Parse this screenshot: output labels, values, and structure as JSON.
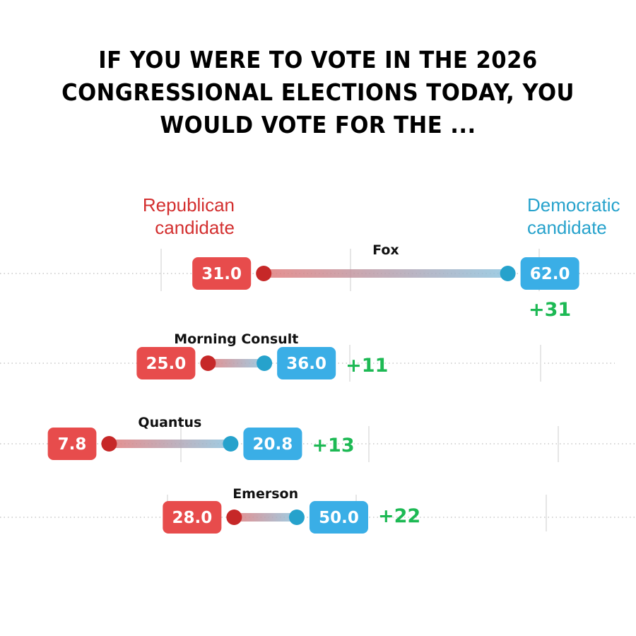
{
  "title": "If you were to vote in the 2026 Congressional elections today, you would vote for the ...",
  "legend": {
    "republican": "Republican candidate",
    "democratic": "Democratic candidate"
  },
  "colors": {
    "republican": "#e74c4c",
    "republican_dot": "#c62828",
    "democratic": "#3aaee6",
    "democratic_dot": "#26a2cc",
    "margin": "#1db954"
  },
  "chart_data": {
    "type": "dumbbell",
    "title": "If you were to vote in the 2026 Congressional elections today, you would vote for the ...",
    "series": [
      {
        "name": "Republican candidate"
      },
      {
        "name": "Democratic candidate"
      }
    ],
    "rows": [
      {
        "pollster": "Fox",
        "republican": "31.0",
        "democratic": "62.0",
        "margin": "+31"
      },
      {
        "pollster": "Morning Consult",
        "republican": "25.0",
        "democratic": "36.0",
        "margin": "+11"
      },
      {
        "pollster": "Quantus",
        "republican": "7.8",
        "democratic": "20.8",
        "margin": "+13"
      },
      {
        "pollster": "Emerson",
        "republican": "28.0",
        "democratic": "50.0",
        "margin": "+22"
      }
    ]
  }
}
